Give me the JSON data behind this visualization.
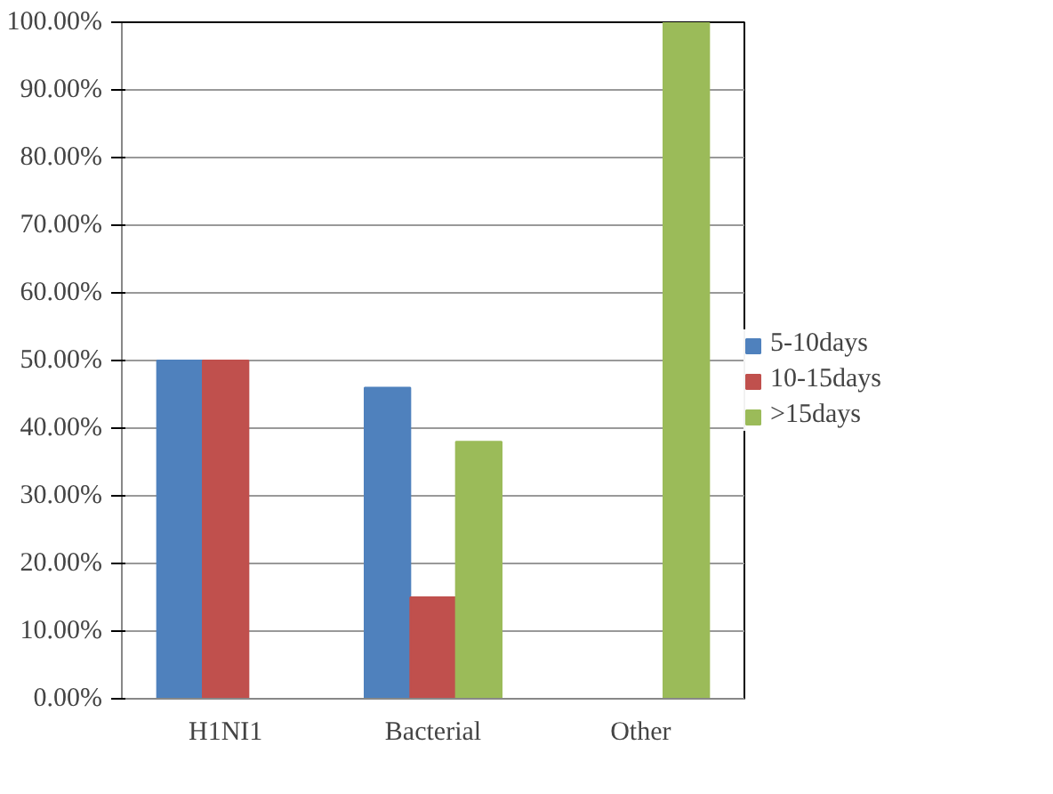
{
  "chart_data": {
    "type": "bar",
    "categories": [
      "H1NI1",
      "Bacterial",
      "Other"
    ],
    "series": [
      {
        "name": "5-10days",
        "color": "#4f81bd",
        "values": [
          50,
          46,
          0
        ]
      },
      {
        "name": "10-15days",
        "color": "#c0504d",
        "values": [
          50,
          15,
          0
        ]
      },
      {
        "name": ">15days",
        "color": "#9bbb59",
        "values": [
          0,
          38,
          100
        ]
      }
    ],
    "ylim": [
      0,
      100
    ],
    "yticks": [
      {
        "value": 0,
        "label": "0.00%"
      },
      {
        "value": 10,
        "label": "10.00%"
      },
      {
        "value": 20,
        "label": "20.00%"
      },
      {
        "value": 30,
        "label": "30.00%"
      },
      {
        "value": 40,
        "label": "40.00%"
      },
      {
        "value": 50,
        "label": "50.00%"
      },
      {
        "value": 60,
        "label": "60.00%"
      },
      {
        "value": 70,
        "label": "70.00%"
      },
      {
        "value": 80,
        "label": "80.00%"
      },
      {
        "value": 90,
        "label": "90.00%"
      },
      {
        "value": 100,
        "label": "100.00%"
      }
    ],
    "grid": "y",
    "legend": "right"
  }
}
